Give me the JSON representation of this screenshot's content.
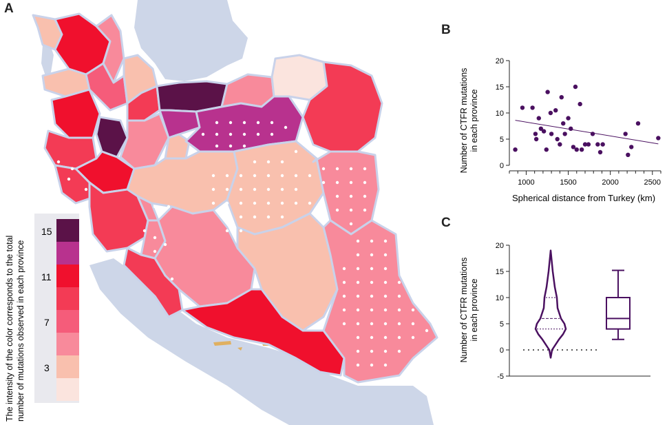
{
  "panels": {
    "a": "A",
    "b": "B",
    "c": "C"
  },
  "colors": {
    "scale": [
      "#fbe4de",
      "#f9c0ae",
      "#f88a9b",
      "#f55c7a",
      "#f33b55",
      "#f0102d",
      "#b8328e",
      "#5b1248"
    ],
    "sea": "#cdd6e8",
    "border": "#c9d2ea",
    "scatter_point": "#4a1060",
    "violin": "#4a1060",
    "islands": "#e0b060"
  },
  "legend": {
    "caption_line1": "The intensity of the color corresponds to the total",
    "caption_line2": "number of mutations observed in each province",
    "tick_labels": [
      "15",
      "11",
      "7",
      "3"
    ]
  },
  "chart_data": [
    {
      "type": "scatter",
      "panel": "B",
      "xlabel": "Spherical distance from Turkey (km)",
      "ylabel_line1": "Number of CTFR mutations",
      "ylabel_line2": "in each province",
      "xlim": [
        800,
        2600
      ],
      "ylim": [
        0,
        20
      ],
      "xticks": [
        "1000",
        "1500",
        "2000",
        "2500"
      ],
      "xtick_values": [
        1000,
        1500,
        2000,
        2500
      ],
      "yticks": [
        "0",
        "5",
        "10",
        "15",
        "20"
      ],
      "ytick_values": [
        0,
        5,
        10,
        15,
        20
      ],
      "points": [
        [
          870,
          3
        ],
        [
          955,
          11
        ],
        [
          1075,
          11
        ],
        [
          1110,
          6
        ],
        [
          1120,
          5
        ],
        [
          1150,
          9
        ],
        [
          1175,
          7
        ],
        [
          1210,
          6.5
        ],
        [
          1240,
          3
        ],
        [
          1255,
          14
        ],
        [
          1290,
          10
        ],
        [
          1300,
          6
        ],
        [
          1350,
          10.5
        ],
        [
          1370,
          5
        ],
        [
          1400,
          4
        ],
        [
          1420,
          13
        ],
        [
          1440,
          8
        ],
        [
          1460,
          6
        ],
        [
          1500,
          9
        ],
        [
          1530,
          7
        ],
        [
          1560,
          3.5
        ],
        [
          1585,
          15
        ],
        [
          1600,
          3
        ],
        [
          1640,
          11.7
        ],
        [
          1660,
          3
        ],
        [
          1700,
          4
        ],
        [
          1740,
          4
        ],
        [
          1790,
          6
        ],
        [
          1850,
          4
        ],
        [
          1880,
          2.5
        ],
        [
          1910,
          4
        ],
        [
          2180,
          6
        ],
        [
          2210,
          2
        ],
        [
          2250,
          3.5
        ],
        [
          2330,
          8
        ],
        [
          2570,
          5.2
        ]
      ],
      "trend_line": [
        [
          870,
          8.6
        ],
        [
          2570,
          4.1
        ]
      ]
    },
    {
      "type": "violin",
      "panel": "C",
      "ylabel_line1": "Number of CTFR mutations",
      "ylabel_line2": "in each province",
      "ylim": [
        -5,
        20
      ],
      "yticks": [
        "-5",
        "0",
        "5",
        "10",
        "15",
        "20"
      ],
      "ytick_values": [
        -5,
        0,
        5,
        10,
        15,
        20
      ],
      "violin": {
        "min": -1.5,
        "max": 19,
        "q1": 4,
        "median": 6,
        "q3": 10,
        "baseline": 0
      },
      "box": {
        "whisker_low": 2,
        "q1": 4,
        "median": 6,
        "q3": 10,
        "whisker_high": 15.2
      }
    }
  ]
}
